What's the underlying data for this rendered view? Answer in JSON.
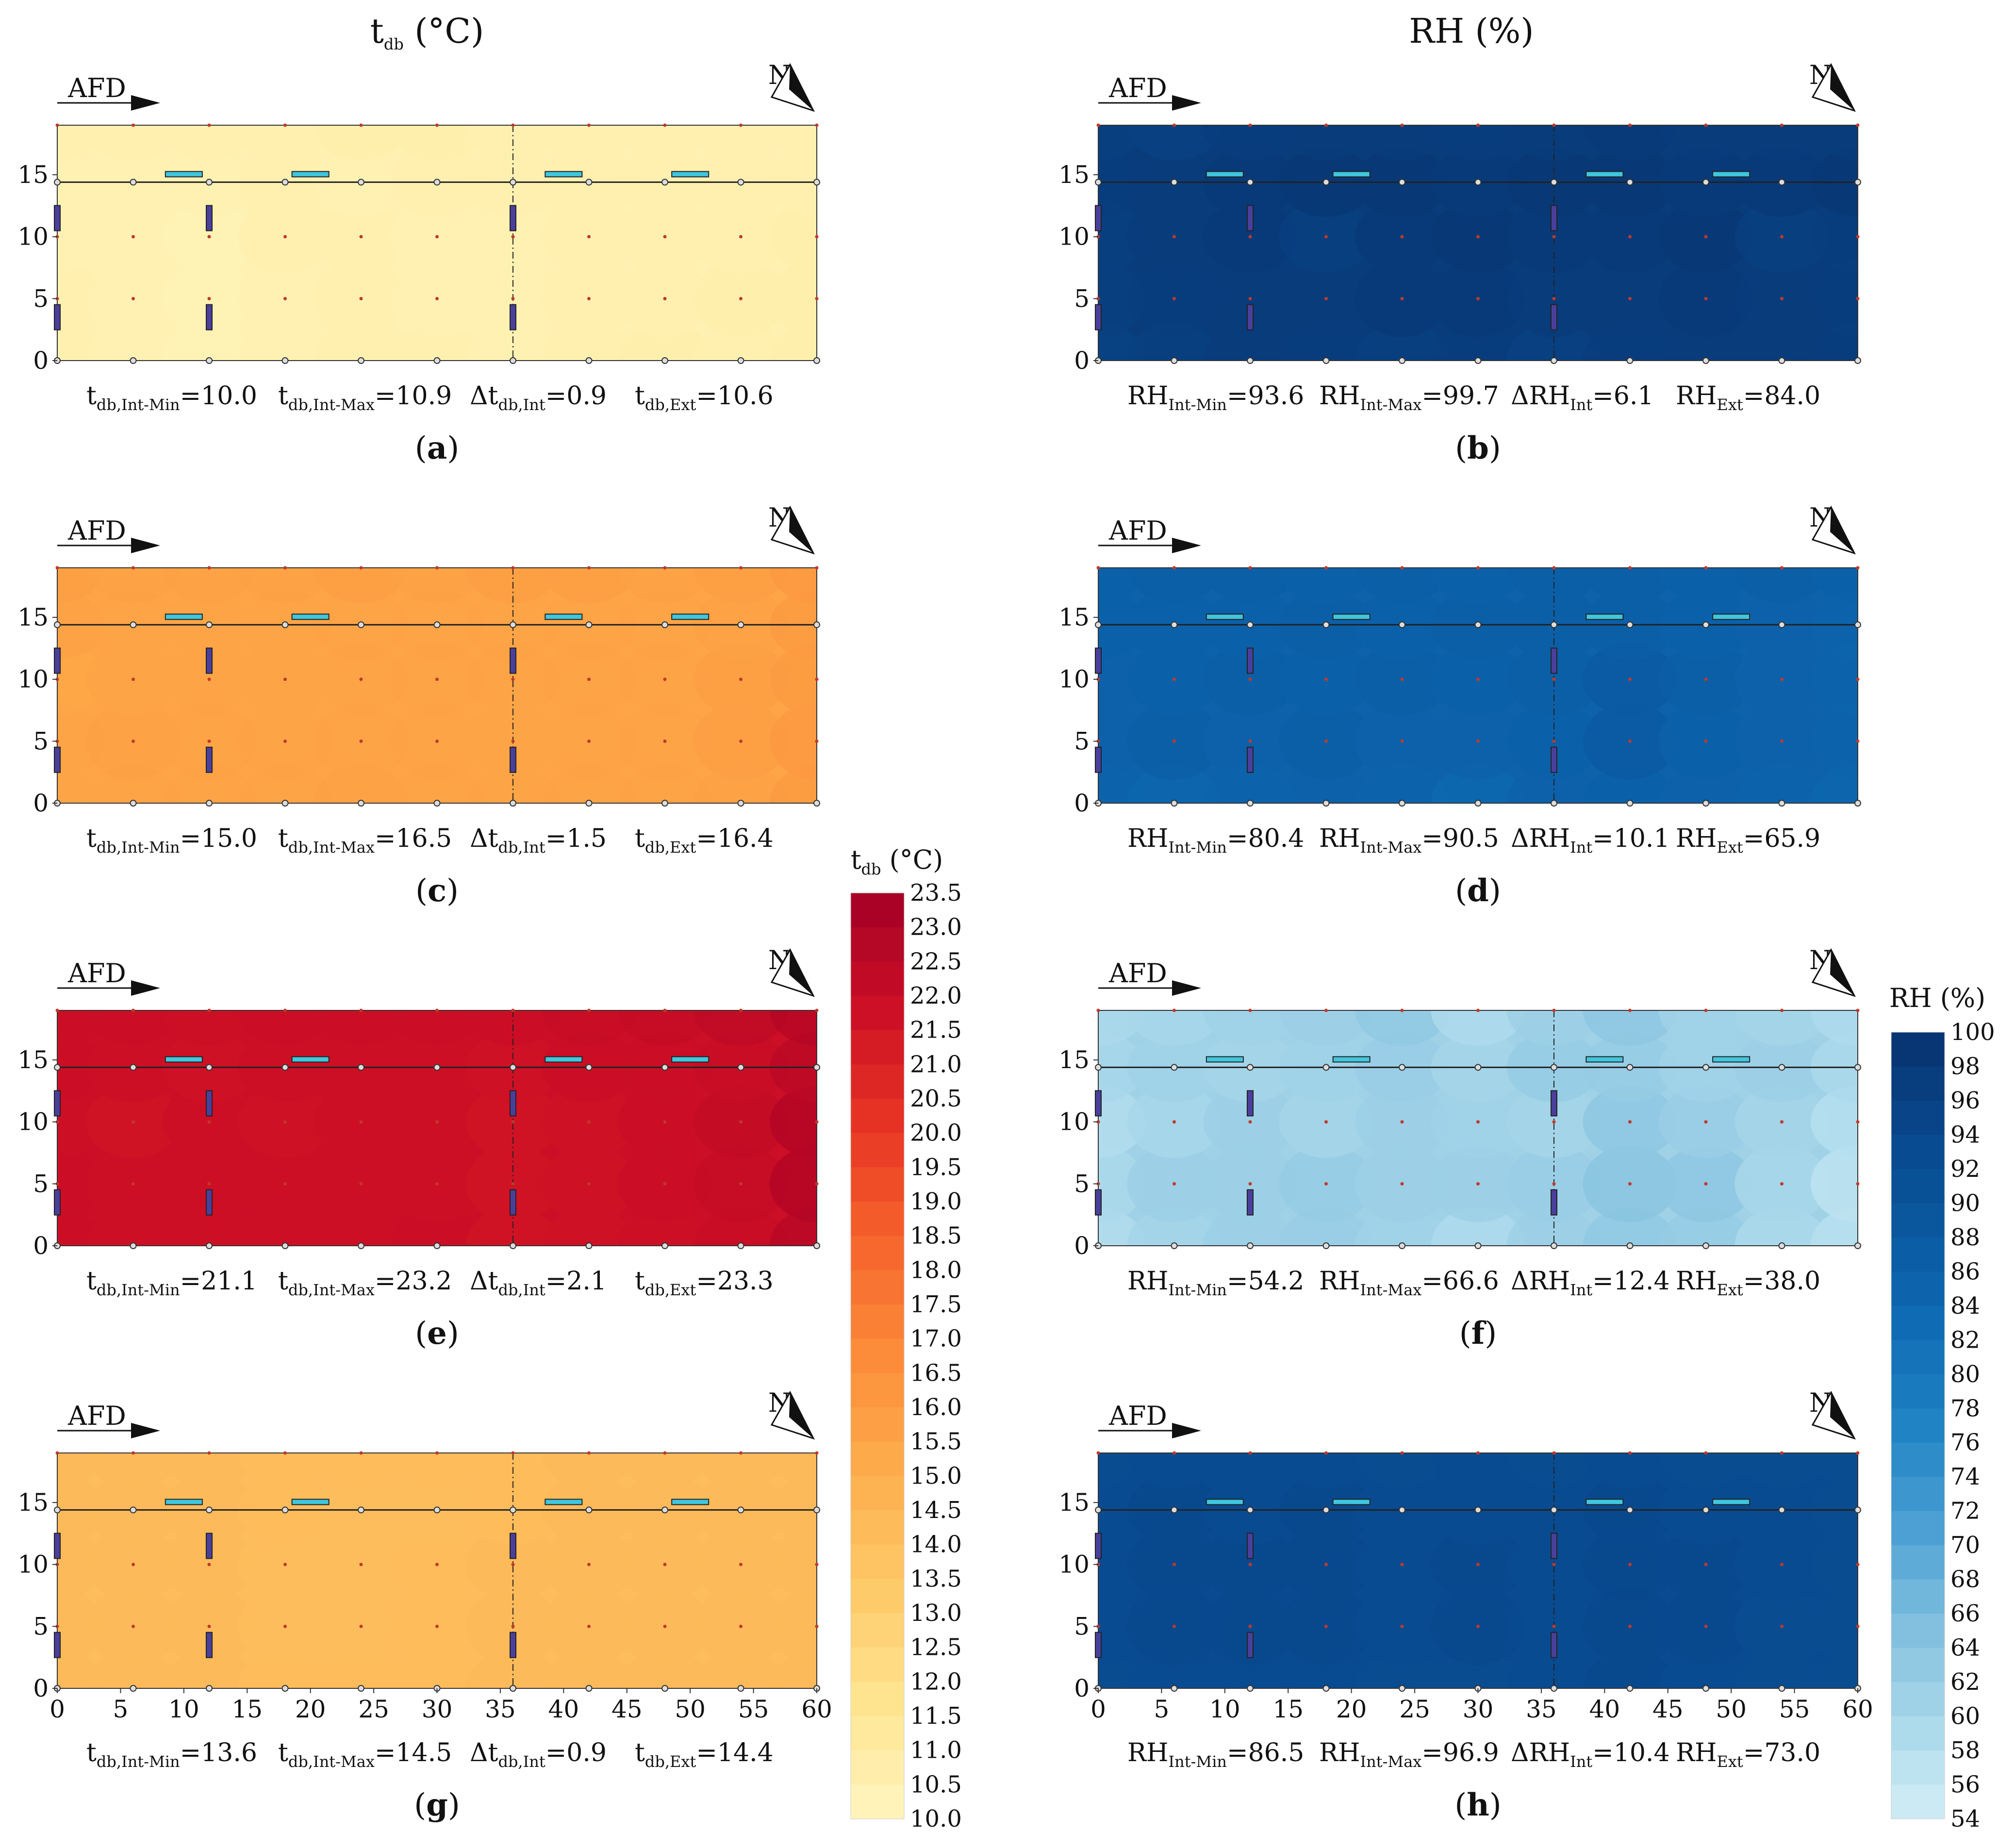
{
  "column_titles": {
    "left": {
      "main": "t",
      "sub": "db",
      "rest": " (°C)"
    },
    "right": {
      "main": "RH (%)"
    }
  },
  "common": {
    "afd_label": "AFD",
    "north_label": "N",
    "x_ticks": [
      "0",
      "5",
      "10",
      "15",
      "20",
      "25",
      "30",
      "35",
      "40",
      "45",
      "50",
      "55",
      "60"
    ],
    "y_ticks": [
      "0",
      "5",
      "10",
      "15"
    ]
  },
  "colorbars": {
    "tdb": {
      "title": {
        "main": "t",
        "sub": "db",
        "rest": " (°C)"
      },
      "ticks": [
        "23.5",
        "23.0",
        "22.5",
        "22.0",
        "21.5",
        "21.0",
        "20.5",
        "20.0",
        "19.5",
        "19.0",
        "18.5",
        "18.0",
        "17.5",
        "17.0",
        "16.5",
        "16.0",
        "15.5",
        "15.0",
        "14.5",
        "14.0",
        "13.5",
        "13.0",
        "12.5",
        "12.0",
        "11.5",
        "11.0",
        "10.5",
        "10.0"
      ],
      "min": 10.0,
      "max": 23.5,
      "colors": [
        "#fff6c0",
        "#ffe590",
        "#fec968",
        "#fdae4c",
        "#fc8c3a",
        "#f6642c",
        "#e73524",
        "#cc0f26",
        "#a30026"
      ]
    },
    "rh": {
      "title": {
        "main": "RH (%)"
      },
      "ticks": [
        "100",
        "98",
        "96",
        "94",
        "92",
        "90",
        "88",
        "86",
        "84",
        "82",
        "80",
        "78",
        "76",
        "74",
        "72",
        "70",
        "68",
        "66",
        "64",
        "62",
        "60",
        "58",
        "56",
        "54"
      ],
      "min": 54,
      "max": 100,
      "colors": [
        "#d2eef6",
        "#a9d8ea",
        "#7fbede",
        "#4a9fd2",
        "#1f83c4",
        "#0f6cb4",
        "#0a58a0",
        "#08478b",
        "#08336f"
      ]
    }
  },
  "panels": [
    {
      "label": "a",
      "var": "tdb",
      "stats": [
        {
          "m": "t",
          "s": "db,Int-Min",
          "v": "=10.0"
        },
        {
          "m": "t",
          "s": "db,Int-Max",
          "v": "=10.9"
        },
        {
          "m": "Δt",
          "s": "db,Int",
          "v": "=0.9"
        },
        {
          "m": "t",
          "s": "db,Ext",
          "v": "=10.6"
        }
      ]
    },
    {
      "label": "b",
      "var": "rh",
      "stats": [
        {
          "m": "RH",
          "s": "Int-Min",
          "v": "=93.6"
        },
        {
          "m": "RH",
          "s": "Int-Max",
          "v": "=99.7"
        },
        {
          "m": "ΔRH",
          "s": "Int",
          "v": "=6.1"
        },
        {
          "m": "RH",
          "s": "Ext",
          "v": "=84.0"
        }
      ]
    },
    {
      "label": "c",
      "var": "tdb",
      "stats": [
        {
          "m": "t",
          "s": "db,Int-Min",
          "v": "=15.0"
        },
        {
          "m": "t",
          "s": "db,Int-Max",
          "v": "=16.5"
        },
        {
          "m": "Δt",
          "s": "db,Int",
          "v": "=1.5"
        },
        {
          "m": "t",
          "s": "db,Ext",
          "v": "=16.4"
        }
      ]
    },
    {
      "label": "d",
      "var": "rh",
      "stats": [
        {
          "m": "RH",
          "s": "Int-Min",
          "v": "=80.4"
        },
        {
          "m": "RH",
          "s": "Int-Max",
          "v": "=90.5"
        },
        {
          "m": "ΔRH",
          "s": "Int",
          "v": "=10.1"
        },
        {
          "m": "RH",
          "s": "Ext",
          "v": "=65.9"
        }
      ]
    },
    {
      "label": "e",
      "var": "tdb",
      "stats": [
        {
          "m": "t",
          "s": "db,Int-Min",
          "v": "=21.1"
        },
        {
          "m": "t",
          "s": "db,Int-Max",
          "v": "=23.2"
        },
        {
          "m": "Δt",
          "s": "db,Int",
          "v": "=2.1"
        },
        {
          "m": "t",
          "s": "db,Ext",
          "v": "=23.3"
        }
      ]
    },
    {
      "label": "f",
      "var": "rh",
      "stats": [
        {
          "m": "RH",
          "s": "Int-Min",
          "v": "=54.2"
        },
        {
          "m": "RH",
          "s": "Int-Max",
          "v": "=66.6"
        },
        {
          "m": "ΔRH",
          "s": "Int",
          "v": "=12.4"
        },
        {
          "m": "RH",
          "s": "Ext",
          "v": "=38.0"
        }
      ]
    },
    {
      "label": "g",
      "var": "tdb",
      "stats": [
        {
          "m": "t",
          "s": "db,Int-Min",
          "v": "=13.6"
        },
        {
          "m": "t",
          "s": "db,Int-Max",
          "v": "=14.5"
        },
        {
          "m": "Δt",
          "s": "db,Int",
          "v": "=0.9"
        },
        {
          "m": "t",
          "s": "db,Ext",
          "v": "=14.4"
        }
      ]
    },
    {
      "label": "h",
      "var": "rh",
      "stats": [
        {
          "m": "RH",
          "s": "Int-Min",
          "v": "=86.5"
        },
        {
          "m": "RH",
          "s": "Int-Max",
          "v": "=96.9"
        },
        {
          "m": "ΔRH",
          "s": "Int",
          "v": "=10.4"
        },
        {
          "m": "RH",
          "s": "Ext",
          "v": "=73.0"
        }
      ]
    }
  ],
  "chart_data": [
    {
      "type": "heatmap",
      "panel": "a",
      "title": "t_db (°C)",
      "xlabel": "",
      "ylabel": "",
      "xlim": [
        0,
        60
      ],
      "ylim": [
        0,
        19
      ],
      "ticks_x": [
        0,
        5,
        10,
        15,
        20,
        25,
        30,
        35,
        40,
        45,
        50,
        55,
        60
      ],
      "ticks_y": [
        0,
        5,
        10,
        15
      ],
      "base": 10.5,
      "grid_x": [
        0,
        6,
        12,
        18,
        24,
        30,
        36,
        42,
        48,
        54,
        60
      ],
      "grid_y": [
        0,
        5,
        10,
        14.4,
        19
      ],
      "values": [
        [
          10.6,
          10.5,
          10.4,
          10.5,
          10.6,
          10.6,
          10.5,
          10.6,
          10.7,
          10.6,
          10.7
        ],
        [
          10.6,
          10.5,
          10.4,
          10.5,
          10.6,
          10.5,
          10.5,
          10.6,
          10.6,
          10.7,
          10.7
        ],
        [
          10.5,
          10.5,
          10.4,
          10.6,
          10.6,
          10.5,
          10.5,
          10.6,
          10.6,
          10.6,
          10.7
        ],
        [
          10.5,
          10.5,
          10.5,
          10.6,
          10.5,
          10.6,
          10.6,
          10.6,
          10.6,
          10.6,
          10.6
        ],
        [
          10.6,
          10.6,
          10.6,
          10.6,
          10.7,
          10.7,
          10.6,
          10.6,
          10.6,
          10.6,
          10.6
        ]
      ]
    },
    {
      "type": "heatmap",
      "panel": "b",
      "title": "RH (%)",
      "xlabel": "",
      "ylabel": "",
      "xlim": [
        0,
        60
      ],
      "ylim": [
        0,
        19
      ],
      "ticks_x": [
        0,
        5,
        10,
        15,
        20,
        25,
        30,
        35,
        40,
        45,
        50,
        55,
        60
      ],
      "ticks_y": [
        0,
        5,
        10,
        15
      ],
      "base": 97.5,
      "grid_x": [
        0,
        6,
        12,
        18,
        24,
        30,
        36,
        42,
        48,
        54,
        60
      ],
      "grid_y": [
        0,
        5,
        10,
        14.4,
        19
      ],
      "values": [
        [
          95.5,
          96.5,
          97.5,
          97.0,
          96.5,
          97.0,
          96.0,
          97.0,
          97.5,
          97.5,
          97.0
        ],
        [
          96.5,
          97.0,
          97.5,
          97.5,
          98.0,
          98.0,
          97.5,
          97.5,
          98.0,
          97.5,
          97.0
        ],
        [
          96.5,
          97.5,
          98.0,
          96.5,
          98.0,
          98.5,
          98.0,
          98.0,
          98.5,
          96.5,
          97.0
        ],
        [
          97.0,
          97.5,
          98.0,
          98.5,
          98.5,
          98.0,
          98.5,
          98.5,
          98.0,
          98.0,
          98.5
        ],
        [
          96.5,
          96.0,
          97.0,
          97.5,
          97.5,
          97.0,
          97.5,
          98.0,
          97.5,
          97.5,
          97.5
        ]
      ]
    },
    {
      "type": "heatmap",
      "panel": "c",
      "title": "t_db (°C)",
      "xlabel": "",
      "ylabel": "",
      "xlim": [
        0,
        60
      ],
      "ylim": [
        0,
        19
      ],
      "ticks_x": [
        0,
        5,
        10,
        15,
        20,
        25,
        30,
        35,
        40,
        45,
        50,
        55,
        60
      ],
      "ticks_y": [
        0,
        5,
        10,
        15
      ],
      "base": 15.5,
      "grid_x": [
        0,
        6,
        12,
        18,
        24,
        30,
        36,
        42,
        48,
        54,
        60
      ],
      "grid_y": [
        0,
        5,
        10,
        14.4,
        19
      ],
      "values": [
        [
          15.5,
          15.6,
          15.6,
          15.6,
          15.7,
          15.6,
          15.6,
          15.6,
          15.6,
          15.7,
          16.0
        ],
        [
          15.6,
          15.7,
          15.6,
          15.6,
          15.6,
          15.6,
          15.5,
          15.6,
          15.6,
          15.8,
          16.1
        ],
        [
          15.4,
          15.5,
          15.6,
          15.5,
          15.6,
          15.6,
          15.6,
          15.6,
          15.6,
          15.8,
          16.0
        ],
        [
          15.7,
          15.6,
          15.5,
          15.6,
          15.6,
          15.6,
          15.6,
          15.6,
          15.6,
          15.7,
          16.0
        ],
        [
          15.8,
          15.7,
          15.7,
          15.7,
          15.8,
          15.7,
          15.8,
          15.8,
          15.7,
          15.8,
          16.1
        ]
      ]
    },
    {
      "type": "heatmap",
      "panel": "d",
      "title": "RH (%)",
      "xlabel": "",
      "ylabel": "",
      "xlim": [
        0,
        60
      ],
      "ylim": [
        0,
        19
      ],
      "ticks_x": [
        0,
        5,
        10,
        15,
        20,
        25,
        30,
        35,
        40,
        45,
        50,
        55,
        60
      ],
      "ticks_y": [
        0,
        5,
        10,
        15
      ],
      "base": 85.5,
      "grid_x": [
        0,
        6,
        12,
        18,
        24,
        30,
        36,
        42,
        48,
        54,
        60
      ],
      "grid_y": [
        0,
        5,
        10,
        14.4,
        19
      ],
      "values": [
        [
          85.0,
          84.5,
          85.0,
          85.5,
          85.0,
          84.0,
          85.5,
          86.0,
          85.5,
          85.0,
          84.5
        ],
        [
          85.5,
          86.5,
          85.5,
          86.5,
          85.5,
          85.5,
          86.0,
          87.5,
          86.0,
          85.5,
          85.0
        ],
        [
          85.5,
          86.0,
          86.5,
          86.0,
          86.5,
          86.0,
          86.5,
          87.5,
          86.5,
          85.5,
          85.0
        ],
        [
          86.0,
          86.0,
          86.0,
          86.5,
          86.0,
          86.5,
          86.5,
          86.5,
          86.0,
          85.5,
          85.0
        ],
        [
          86.0,
          86.5,
          86.5,
          86.0,
          86.5,
          86.0,
          86.5,
          86.5,
          86.0,
          86.5,
          86.0
        ]
      ]
    },
    {
      "type": "heatmap",
      "panel": "e",
      "title": "t_db (°C)",
      "xlabel": "",
      "ylabel": "",
      "xlim": [
        0,
        60
      ],
      "ylim": [
        0,
        19
      ],
      "ticks_x": [
        0,
        5,
        10,
        15,
        20,
        25,
        30,
        35,
        40,
        45,
        50,
        55,
        60
      ],
      "ticks_y": [
        0,
        5,
        10,
        15
      ],
      "base": 21.8,
      "grid_x": [
        0,
        6,
        12,
        18,
        24,
        30,
        36,
        42,
        48,
        54,
        60
      ],
      "grid_y": [
        0,
        5,
        10,
        14.4,
        19
      ],
      "values": [
        [
          21.9,
          21.8,
          21.8,
          21.8,
          21.8,
          21.9,
          21.6,
          21.7,
          21.8,
          22.0,
          22.6
        ],
        [
          21.9,
          21.8,
          21.8,
          21.8,
          21.8,
          21.8,
          21.6,
          21.7,
          21.9,
          22.1,
          22.8
        ],
        [
          21.8,
          21.6,
          21.8,
          21.7,
          21.8,
          21.8,
          21.6,
          21.7,
          21.9,
          22.2,
          22.8
        ],
        [
          21.9,
          21.8,
          21.7,
          21.8,
          21.8,
          21.8,
          21.7,
          21.9,
          21.9,
          22.0,
          22.5
        ],
        [
          21.9,
          21.9,
          21.8,
          21.9,
          21.9,
          21.9,
          21.9,
          22.0,
          22.1,
          22.3,
          22.7
        ]
      ]
    },
    {
      "type": "heatmap",
      "panel": "f",
      "title": "RH (%)",
      "xlabel": "",
      "ylabel": "",
      "xlim": [
        0,
        60
      ],
      "ylim": [
        0,
        19
      ],
      "ticks_x": [
        0,
        5,
        10,
        15,
        20,
        25,
        30,
        35,
        40,
        45,
        50,
        55,
        60
      ],
      "ticks_y": [
        0,
        5,
        10,
        15
      ],
      "base": 61.0,
      "grid_x": [
        0,
        6,
        12,
        18,
        24,
        30,
        36,
        42,
        48,
        54,
        60
      ],
      "grid_y": [
        0,
        5,
        10,
        14.4,
        19
      ],
      "values": [
        [
          58.5,
          60.5,
          61.5,
          62.0,
          61.0,
          59.0,
          61.5,
          63.0,
          62.5,
          59.5,
          57.5
        ],
        [
          59.5,
          61.5,
          61.5,
          62.5,
          61.5,
          61.5,
          62.0,
          64.0,
          63.5,
          60.0,
          57.0
        ],
        [
          58.5,
          60.0,
          61.5,
          60.5,
          61.5,
          61.0,
          60.5,
          63.5,
          62.0,
          60.5,
          58.0
        ],
        [
          60.0,
          61.0,
          60.5,
          61.0,
          62.0,
          60.5,
          62.5,
          62.5,
          61.0,
          61.5,
          59.5
        ],
        [
          59.5,
          60.0,
          61.0,
          61.5,
          63.0,
          59.0,
          61.5,
          63.5,
          61.0,
          60.5,
          59.0
        ]
      ]
    },
    {
      "type": "heatmap",
      "panel": "g",
      "title": "t_db (°C)",
      "xlabel": "",
      "ylabel": "",
      "xlim": [
        0,
        60
      ],
      "ylim": [
        0,
        19
      ],
      "ticks_x": [
        0,
        5,
        10,
        15,
        20,
        25,
        30,
        35,
        40,
        45,
        50,
        55,
        60
      ],
      "ticks_y": [
        0,
        5,
        10,
        15
      ],
      "base": 14.1,
      "grid_x": [
        0,
        6,
        12,
        18,
        24,
        30,
        36,
        42,
        48,
        54,
        60
      ],
      "grid_y": [
        0,
        5,
        10,
        14.4,
        19
      ],
      "values": [
        [
          14.3,
          14.3,
          14.3,
          14.2,
          14.2,
          14.2,
          14.3,
          14.3,
          14.3,
          14.3,
          14.3
        ],
        [
          14.3,
          14.3,
          14.3,
          14.1,
          14.1,
          14.2,
          14.3,
          14.3,
          14.3,
          14.3,
          14.3
        ],
        [
          14.3,
          14.3,
          14.3,
          14.1,
          14.1,
          14.2,
          14.3,
          14.3,
          14.3,
          14.3,
          14.3
        ],
        [
          14.3,
          14.3,
          14.3,
          14.2,
          14.1,
          14.1,
          14.2,
          14.3,
          14.3,
          14.3,
          14.3
        ],
        [
          14.3,
          14.3,
          14.3,
          14.2,
          14.2,
          14.2,
          14.2,
          14.3,
          14.3,
          14.3,
          14.3
        ]
      ]
    },
    {
      "type": "heatmap",
      "panel": "h",
      "title": "RH (%)",
      "xlabel": "",
      "ylabel": "",
      "xlim": [
        0,
        60
      ],
      "ylim": [
        0,
        19
      ],
      "ticks_x": [
        0,
        5,
        10,
        15,
        20,
        25,
        30,
        35,
        40,
        45,
        50,
        55,
        60
      ],
      "ticks_y": [
        0,
        5,
        10,
        15
      ],
      "base": 93.0,
      "grid_x": [
        0,
        6,
        12,
        18,
        24,
        30,
        36,
        42,
        48,
        54,
        60
      ],
      "grid_y": [
        0,
        5,
        10,
        14.4,
        19
      ],
      "values": [
        [
          92.5,
          93.0,
          93.0,
          93.0,
          92.5,
          92.5,
          93.0,
          93.5,
          93.0,
          92.5,
          92.5
        ],
        [
          93.0,
          94.0,
          93.5,
          93.5,
          93.0,
          94.0,
          93.0,
          94.0,
          93.5,
          92.5,
          92.5
        ],
        [
          93.0,
          93.5,
          93.5,
          93.5,
          93.0,
          93.5,
          93.0,
          94.0,
          93.5,
          93.0,
          92.5
        ],
        [
          93.0,
          93.5,
          93.0,
          93.5,
          93.0,
          93.0,
          93.0,
          93.5,
          93.0,
          93.0,
          92.5
        ],
        [
          92.5,
          93.0,
          93.0,
          93.0,
          92.5,
          93.0,
          92.5,
          93.0,
          92.5,
          92.5,
          92.5
        ]
      ]
    }
  ]
}
